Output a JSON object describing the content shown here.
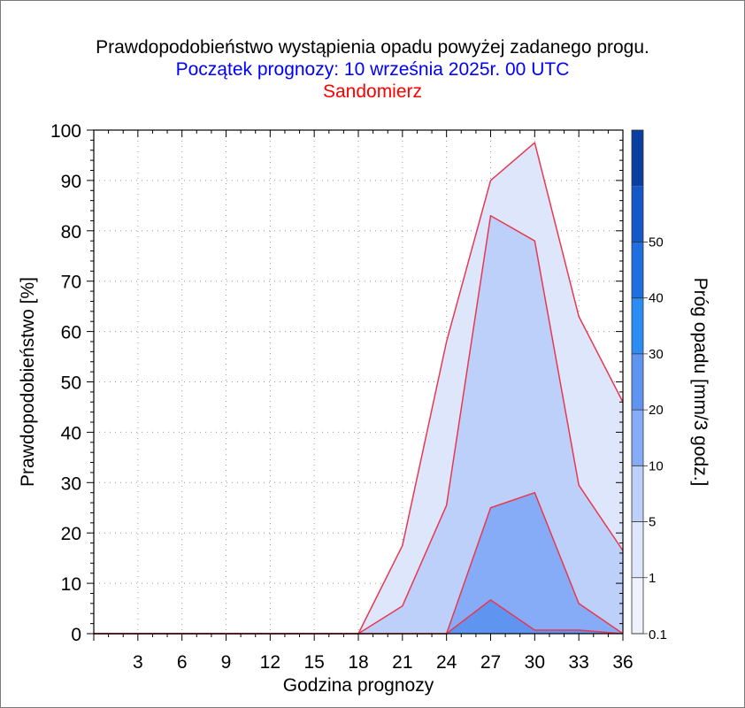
{
  "chart_data": {
    "type": "area",
    "title": "Prawdopodobieństwo wystąpienia opadu powyżej zadanego progu.",
    "subtitle": "Początek prognozy: 10 września 2025r. 00 UTC",
    "location": "Sandomierz",
    "xlabel": "Godzina prognozy",
    "ylabel": "Prawdopodobieństwo [%]",
    "xlim": [
      0,
      36
    ],
    "ylim": [
      0,
      100
    ],
    "x": [
      0,
      3,
      6,
      9,
      12,
      15,
      18,
      21,
      24,
      27,
      30,
      33,
      36
    ],
    "x_ticks": [
      "3",
      "6",
      "9",
      "12",
      "15",
      "18",
      "21",
      "24",
      "27",
      "30",
      "33",
      "36"
    ],
    "y_ticks": [
      "0",
      "10",
      "20",
      "30",
      "40",
      "50",
      "60",
      "70",
      "80",
      "90",
      "100"
    ],
    "series": [
      {
        "name": "0.1",
        "color": "#dde6fb",
        "values": [
          0,
          0,
          0,
          0,
          0,
          0,
          0,
          17.5,
          58,
          90,
          97.5,
          63,
          46
        ]
      },
      {
        "name": "1",
        "color": "#bcd0fa",
        "values": [
          0,
          0,
          0,
          0,
          0,
          0,
          0,
          5.5,
          25.5,
          83,
          78,
          29.5,
          16.5
        ]
      },
      {
        "name": "5",
        "color": "#87acf7",
        "values": [
          0,
          0,
          0,
          0,
          0,
          0,
          0,
          0,
          0,
          25,
          28,
          6,
          0
        ]
      },
      {
        "name": "10",
        "color": "#5f94f0",
        "values": [
          0,
          0,
          0,
          0,
          0,
          0,
          0,
          0,
          0,
          6.7,
          0.7,
          0.7,
          0
        ]
      }
    ],
    "line_color": "#e8384f",
    "colorbar": {
      "label": "Próg opadu [mm/3 godz.]",
      "ticks": [
        "0.1",
        "1",
        "5",
        "10",
        "20",
        "30",
        "40",
        "50"
      ],
      "colors": [
        "#eef2fd",
        "#dde6fb",
        "#bcd0fa",
        "#87acf7",
        "#5f94f0",
        "#2b8cf2",
        "#1f6fe0",
        "#1458c8",
        "#0a3ea0"
      ]
    },
    "grid": true
  }
}
